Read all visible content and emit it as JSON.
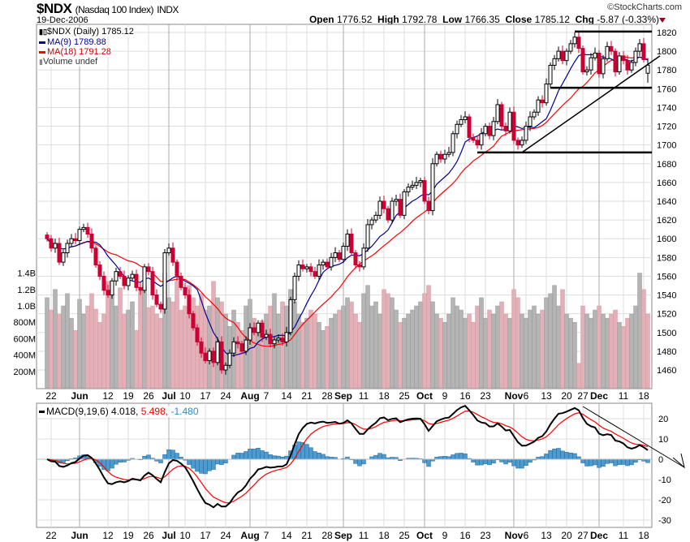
{
  "header": {
    "symbol": "$NDX",
    "name": "(Nasdaq 100 Index)",
    "exchange": "INDX",
    "date": "19-Dec-2006",
    "copyright": "©StockCharts.com",
    "open_label": "Open",
    "open": "1776.52",
    "high_label": "High",
    "high": "1792.78",
    "low_label": "Low",
    "low": "1766.35",
    "close_label": "Close",
    "close": "1785.12",
    "chg_label": "Chg",
    "chg": "-5.87 (-0.33%)",
    "chg_direction": "down"
  },
  "legend": {
    "price": "$NDX (Daily) 1785.12",
    "ma9": "MA(9) 1789.88",
    "ma18": "MA(18) 1791.28",
    "volume": "Volume undef",
    "macd_name": "MACD(9,19,6)",
    "macd_value": "4.018,",
    "signal_value": "5.498,",
    "hist_value": "-1.480"
  },
  "colors": {
    "down": "#cc0033",
    "up_outline": "#000000",
    "ma9": "#000099",
    "ma18": "#ff0000",
    "vol_up": "#b4b4b4",
    "vol_down": "#e4b0b8",
    "macd": "#000000",
    "signal": "#ff0000",
    "hist": "#4b9bd0"
  },
  "chart_data": [
    {
      "type": "candlestick",
      "title": "$NDX (Daily)",
      "ylim": [
        1450,
        1830
      ],
      "yticks": [
        "1820",
        "1800",
        "1780",
        "1760",
        "1740",
        "1720",
        "1700",
        "1680",
        "1660",
        "1640",
        "1620",
        "1600",
        "1580",
        "1560",
        "1540",
        "1520",
        "1500",
        "1480",
        "1460"
      ],
      "xticks": [
        {
          "label": "22",
          "index": 1
        },
        {
          "label": "Jun",
          "index": 8,
          "bold": true
        },
        {
          "label": "12",
          "index": 15
        },
        {
          "label": "19",
          "index": 20
        },
        {
          "label": "26",
          "index": 25
        },
        {
          "label": "Jul",
          "index": 30,
          "bold": true
        },
        {
          "label": "10",
          "index": 34
        },
        {
          "label": "17",
          "index": 39
        },
        {
          "label": "24",
          "index": 44
        },
        {
          "label": "Aug",
          "index": 50,
          "bold": true
        },
        {
          "label": "7",
          "index": 54
        },
        {
          "label": "14",
          "index": 59
        },
        {
          "label": "21",
          "index": 64
        },
        {
          "label": "28",
          "index": 69
        },
        {
          "label": "Sep",
          "index": 73,
          "bold": true
        },
        {
          "label": "11",
          "index": 78
        },
        {
          "label": "18",
          "index": 83
        },
        {
          "label": "25",
          "index": 88
        },
        {
          "label": "Oct",
          "index": 93,
          "bold": true
        },
        {
          "label": "9",
          "index": 98
        },
        {
          "label": "16",
          "index": 103
        },
        {
          "label": "23",
          "index": 108
        },
        {
          "label": "Nov",
          "index": 115,
          "bold": true
        },
        {
          "label": "6",
          "index": 118
        },
        {
          "label": "13",
          "index": 123
        },
        {
          "label": "20",
          "index": 128
        },
        {
          "label": "27",
          "index": 132
        },
        {
          "label": "Dec",
          "index": 136,
          "bold": true
        },
        {
          "label": "11",
          "index": 142
        },
        {
          "label": "18",
          "index": 147
        }
      ],
      "close": [
        1600,
        1590,
        1595,
        1575,
        1585,
        1595,
        1600,
        1598,
        1610,
        1612,
        1605,
        1590,
        1572,
        1560,
        1545,
        1540,
        1555,
        1565,
        1560,
        1550,
        1558,
        1562,
        1548,
        1545,
        1570,
        1565,
        1540,
        1530,
        1525,
        1585,
        1590,
        1575,
        1560,
        1548,
        1540,
        1520,
        1505,
        1490,
        1478,
        1470,
        1480,
        1468,
        1490,
        1460,
        1465,
        1478,
        1490,
        1488,
        1480,
        1492,
        1505,
        1500,
        1510,
        1495,
        1498,
        1488,
        1492,
        1494,
        1490,
        1500,
        1535,
        1560,
        1572,
        1568,
        1570,
        1565,
        1560,
        1572,
        1575,
        1570,
        1580,
        1585,
        1578,
        1592,
        1605,
        1585,
        1572,
        1570,
        1590,
        1615,
        1620,
        1625,
        1640,
        1632,
        1620,
        1640,
        1642,
        1625,
        1650,
        1655,
        1657,
        1660,
        1662,
        1640,
        1630,
        1680,
        1690,
        1685,
        1690,
        1692,
        1712,
        1722,
        1727,
        1730,
        1708,
        1705,
        1700,
        1712,
        1720,
        1710,
        1725,
        1743,
        1720,
        1715,
        1735,
        1705,
        1700,
        1705,
        1720,
        1730,
        1735,
        1748,
        1745,
        1765,
        1785,
        1792,
        1800,
        1790,
        1800,
        1808,
        1815,
        1803,
        1778,
        1780,
        1793,
        1798,
        1776,
        1792,
        1805,
        1800,
        1778,
        1795,
        1790,
        1780,
        1788,
        1800,
        1808,
        1791,
        1785.12
      ],
      "last_bar": {
        "open": 1776.52,
        "high": 1792.78,
        "low": 1766.35,
        "close": 1785.12
      },
      "moving_averages": [
        {
          "name": "MA(9)",
          "period": 9
        },
        {
          "name": "MA(18)",
          "period": 18
        }
      ],
      "trendlines": [
        {
          "type": "horizontal",
          "price": 1821,
          "from_index": 130
        },
        {
          "type": "horizontal",
          "price": 1761,
          "from_index": 124
        },
        {
          "type": "horizontal",
          "price": 1692,
          "from_index": 106
        },
        {
          "type": "trend",
          "from": {
            "index": 117,
            "price": 1692
          },
          "to": {
            "index": 151,
            "price": 1795
          }
        }
      ]
    },
    {
      "type": "bar",
      "title": "Volume",
      "ylim": [
        0,
        1400
      ],
      "yticks": [
        "1.4B",
        "1.2B",
        "1.0B",
        "800M",
        "600M",
        "400M",
        "200M"
      ],
      "unit": "M",
      "values": [
        1100,
        950,
        1200,
        900,
        1000,
        1150,
        850,
        700,
        1080,
        900,
        1000,
        1150,
        960,
        800,
        900,
        1300,
        1150,
        1000,
        1220,
        900,
        950,
        1050,
        700,
        1180,
        1250,
        980,
        1000,
        900,
        850,
        1400,
        1100,
        1050,
        1300,
        950,
        1000,
        1250,
        1100,
        1000,
        1150,
        950,
        1000,
        1300,
        1100,
        1050,
        900,
        750,
        950,
        800,
        700,
        1000,
        1080,
        850,
        700,
        820,
        900,
        1000,
        1150,
        900,
        1050,
        1000,
        1200,
        1050,
        900,
        800,
        850,
        950,
        900,
        800,
        700,
        750,
        850,
        900,
        950,
        1000,
        1100,
        1050,
        900,
        800,
        1150,
        1250,
        1000,
        1050,
        900,
        1200,
        1150,
        1100,
        950,
        800,
        850,
        900,
        950,
        1000,
        1050,
        1150,
        1250,
        1050,
        900,
        850,
        800,
        900,
        1100,
        1000,
        950,
        850,
        900,
        800,
        1000,
        1100,
        850,
        950,
        900,
        1000,
        1050,
        900,
        850,
        1200,
        1100,
        900,
        850,
        950,
        1000,
        900,
        950,
        1100,
        1150,
        1250,
        1000,
        1200,
        900,
        850,
        800,
        300,
        1000,
        900,
        850,
        950,
        1000,
        900,
        850,
        900,
        950,
        800,
        750,
        850,
        900,
        1000,
        1400,
        1200,
        900
      ]
    },
    {
      "type": "line",
      "title": "MACD(9,19,6)",
      "ylim": [
        -33,
        28
      ],
      "yticks": [
        "20",
        "10",
        "0",
        "-10",
        "-20",
        "-30"
      ],
      "fast": 9,
      "slow": 19,
      "signal": 6,
      "trendline": {
        "from": {
          "index": 132,
          "value": 26
        },
        "to": {
          "index": 157,
          "value": -4
        },
        "arrow": true
      }
    }
  ]
}
